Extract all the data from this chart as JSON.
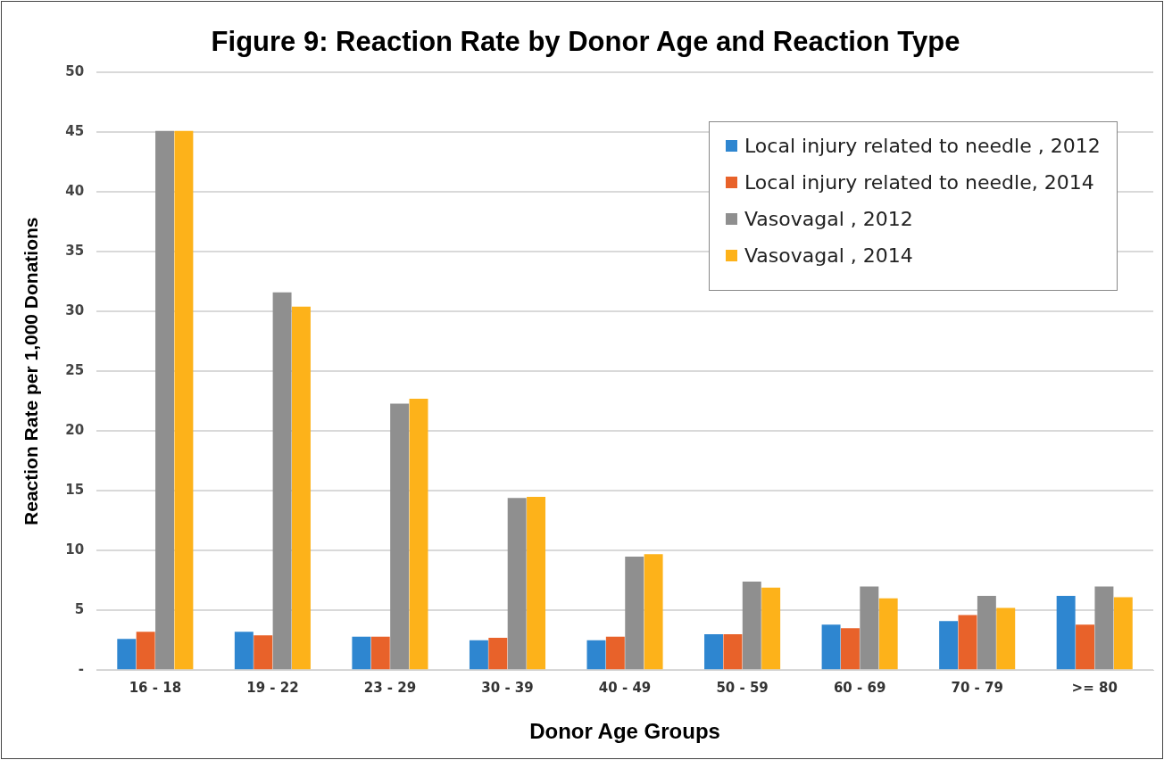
{
  "chart_data": {
    "type": "bar",
    "title": "Figure 9: Reaction Rate by Donor Age and Reaction Type",
    "xlabel": "Donor Age Groups",
    "ylabel": "Reaction Rate per 1,000 Donations",
    "categories": [
      "16 - 18",
      "19 - 22",
      "23 - 29",
      "30 - 39",
      "40 - 49",
      "50 - 59",
      "60 - 69",
      "70 - 79",
      ">= 80"
    ],
    "series": [
      {
        "name": "Local injury related to needle , 2012",
        "color": "#2e86d0",
        "values": [
          2.6,
          3.2,
          2.8,
          2.5,
          2.5,
          3.0,
          3.8,
          4.1,
          6.2
        ]
      },
      {
        "name": "Local injury related to needle, 2014",
        "color": "#e8622a",
        "values": [
          3.2,
          2.9,
          2.8,
          2.7,
          2.8,
          3.0,
          3.5,
          4.6,
          3.8
        ]
      },
      {
        "name": "Vasovagal , 2012",
        "color": "#8f8f8f",
        "values": [
          45.1,
          31.6,
          22.3,
          14.4,
          9.5,
          7.4,
          7.0,
          6.2,
          7.0
        ]
      },
      {
        "name": "Vasovagal , 2014",
        "color": "#fdb21a",
        "values": [
          45.1,
          30.4,
          22.7,
          14.5,
          9.7,
          6.9,
          6.0,
          5.2,
          6.1
        ]
      }
    ],
    "ylim": [
      0,
      50
    ],
    "yticks": [
      {
        "value": 0,
        "label": "-"
      },
      5,
      10,
      15,
      20,
      25,
      30,
      35,
      40,
      45,
      50
    ],
    "grid": "y",
    "legend": "top right"
  }
}
